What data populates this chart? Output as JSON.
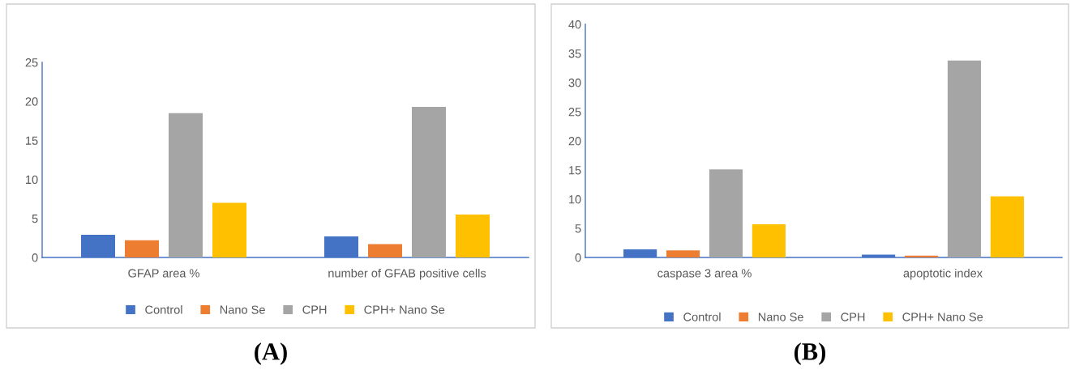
{
  "chart_data": [
    {
      "type": "bar",
      "categories": [
        "GFAP area %",
        "number of GFAB positive cells"
      ],
      "series": [
        {
          "name": "Control",
          "color": "#4472c4",
          "values": [
            2.9,
            2.7
          ]
        },
        {
          "name": "Nano Se",
          "color": "#ed7d31",
          "values": [
            2.2,
            1.7
          ]
        },
        {
          "name": "CPH",
          "color": "#a5a5a5",
          "values": [
            18.5,
            19.3
          ]
        },
        {
          "name": "CPH+ Nano Se",
          "color": "#ffc000",
          "values": [
            7.0,
            5.5
          ]
        }
      ],
      "ylim": [
        0,
        25
      ],
      "yticks": [
        0,
        5,
        10,
        15,
        20,
        25
      ],
      "grid": false,
      "legend": "bottom",
      "annotations": [
        "(A)"
      ]
    },
    {
      "type": "bar",
      "categories": [
        "caspase 3 area %",
        "apoptotic index"
      ],
      "series": [
        {
          "name": "Control",
          "color": "#4472c4",
          "values": [
            1.4,
            0.5
          ]
        },
        {
          "name": "Nano Se",
          "color": "#ed7d31",
          "values": [
            1.2,
            0.3
          ]
        },
        {
          "name": "CPH",
          "color": "#a5a5a5",
          "values": [
            15.1,
            33.8
          ]
        },
        {
          "name": "CPH+ Nano Se",
          "color": "#ffc000",
          "values": [
            5.7,
            10.5
          ]
        }
      ],
      "ylim": [
        0,
        40
      ],
      "yticks": [
        0,
        5,
        10,
        15,
        20,
        25,
        30,
        35,
        40
      ],
      "grid": false,
      "legend": "bottom",
      "annotations": [
        "(B)"
      ]
    }
  ]
}
